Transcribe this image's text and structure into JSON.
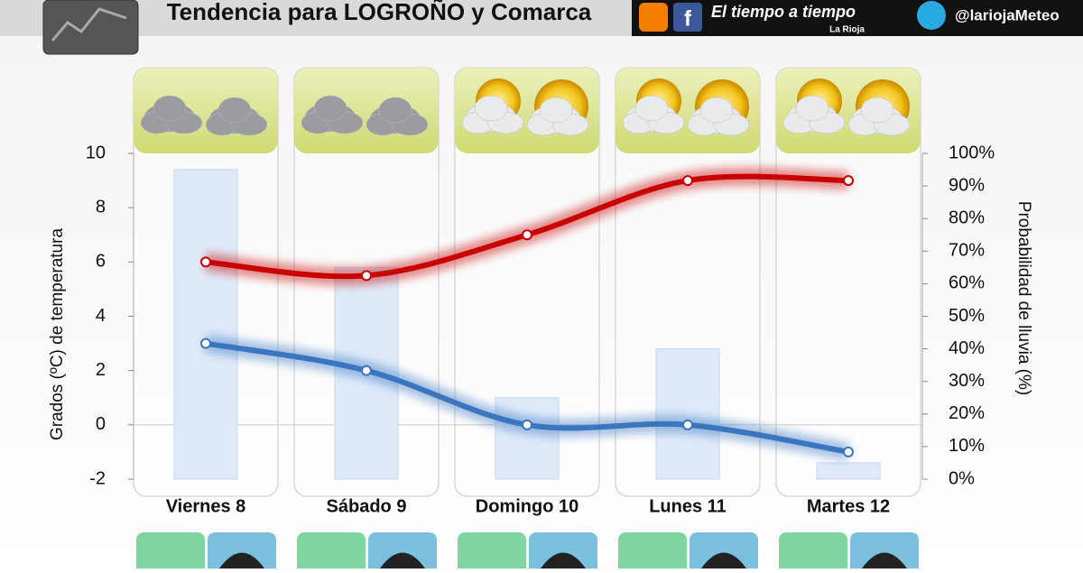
{
  "header": {
    "title": "Tendencia para LOGROÑO y Comarca",
    "brand": "El tiempo a tiempo",
    "brand_sub": "La Rioja",
    "twitter": "@lariojaMeteo"
  },
  "chart_data": {
    "type": "combo",
    "categories": [
      "Viernes 8",
      "Sábado 9",
      "Domingo 10",
      "Lunes 11",
      "Martes 12"
    ],
    "y_label": "Grados (ºC) de temperatura",
    "y2_label": "Probabilidad de lluvia (%)",
    "ylim": [
      -2,
      10
    ],
    "yticks": [
      -2,
      0,
      2,
      4,
      6,
      8,
      10
    ],
    "y2lim": [
      0,
      100
    ],
    "y2ticks": [
      {
        "value": 0,
        "label": "0%"
      },
      {
        "value": 10,
        "label": "10%"
      },
      {
        "value": 20,
        "label": "20%"
      },
      {
        "value": 30,
        "label": "30%"
      },
      {
        "value": 40,
        "label": "40%"
      },
      {
        "value": 50,
        "label": "50%"
      },
      {
        "value": 60,
        "label": "60%"
      },
      {
        "value": 70,
        "label": "70%"
      },
      {
        "value": 80,
        "label": "80%"
      },
      {
        "value": 90,
        "label": "90%"
      },
      {
        "value": 100,
        "label": "100%"
      }
    ],
    "series": [
      {
        "type": "bar",
        "axis": "y2",
        "color": "#deeaf9",
        "values": [
          95,
          65,
          25,
          40,
          5
        ]
      },
      {
        "type": "line",
        "color": "#c80000",
        "values": [
          6,
          5.5,
          7,
          9,
          9
        ]
      },
      {
        "type": "line",
        "color": "#3a76bf",
        "values": [
          3,
          2,
          0,
          0,
          -1
        ]
      }
    ]
  }
}
